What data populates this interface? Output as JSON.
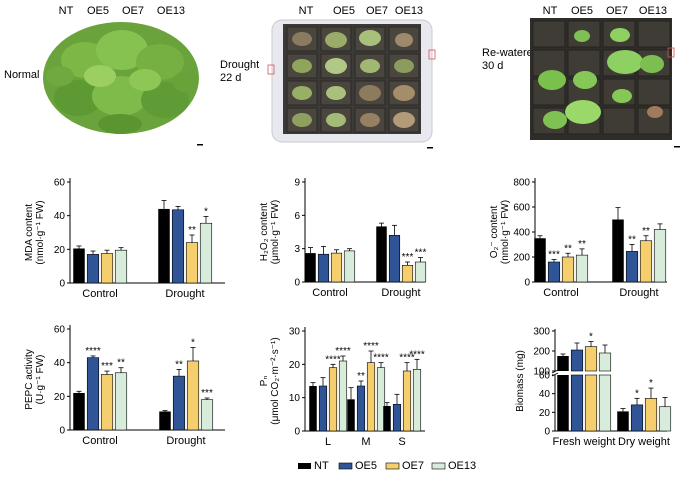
{
  "photos": [
    {
      "condition": "Normal",
      "condition_lines": [
        "Normal"
      ],
      "labels": [
        "NT",
        "OE5",
        "OE7",
        "OE13"
      ]
    },
    {
      "condition": "Drought 22 d",
      "condition_lines": [
        "Drought",
        "22 d"
      ],
      "labels": [
        "NT",
        "OE5",
        "OE7",
        "OE13"
      ]
    },
    {
      "condition": "Re-watered 30 d",
      "condition_lines": [
        "Re-watered",
        "30 d"
      ],
      "labels": [
        "NT",
        "OE5",
        "OE7",
        "OE13"
      ]
    }
  ],
  "legend": {
    "items": [
      {
        "name": "NT",
        "color": "#000000"
      },
      {
        "name": "OE5",
        "color": "#2f5597"
      },
      {
        "name": "OE7",
        "color": "#f5cf6e"
      },
      {
        "name": "OE13",
        "color": "#d8ecdc"
      }
    ]
  },
  "chart_data": [
    {
      "type": "bar",
      "id": "mda",
      "ylabel_lines": [
        "MDA content",
        "(nmol·g⁻¹ FW)"
      ],
      "categories": [
        "Control",
        "Drought"
      ],
      "ylim": [
        0,
        60
      ],
      "yticks": [
        0,
        20,
        40,
        60
      ],
      "series": [
        {
          "name": "NT",
          "values": [
            20.5,
            44
          ],
          "errors": [
            1.5,
            5
          ]
        },
        {
          "name": "OE5",
          "values": [
            17,
            43.5
          ],
          "errors": [
            2,
            2
          ]
        },
        {
          "name": "OE7",
          "values": [
            17.5,
            24
          ],
          "errors": [
            2,
            4.5
          ]
        },
        {
          "name": "OE13",
          "values": [
            19.5,
            35.5
          ],
          "errors": [
            1.5,
            4
          ]
        }
      ],
      "sig": [
        [
          "",
          ""
        ],
        [
          "",
          ""
        ],
        [
          "",
          "**"
        ],
        [
          "",
          "*"
        ]
      ]
    },
    {
      "type": "bar",
      "id": "h2o2",
      "ylabel_lines": [
        "H₂O₂ content",
        "(μmol·g⁻¹ FW)"
      ],
      "categories": [
        "Control",
        "Drought"
      ],
      "ylim": [
        0,
        9
      ],
      "yticks": [
        0,
        3,
        6,
        9
      ],
      "series": [
        {
          "name": "NT",
          "values": [
            2.6,
            5.0
          ],
          "errors": [
            0.5,
            0.3
          ]
        },
        {
          "name": "OE5",
          "values": [
            2.5,
            4.2
          ],
          "errors": [
            0.7,
            0.9
          ]
        },
        {
          "name": "OE7",
          "values": [
            2.6,
            1.5
          ],
          "errors": [
            0.3,
            0.3
          ]
        },
        {
          "name": "OE13",
          "values": [
            2.8,
            1.8
          ],
          "errors": [
            0.2,
            0.4
          ]
        }
      ],
      "sig": [
        [
          "",
          ""
        ],
        [
          "",
          ""
        ],
        [
          "",
          "***"
        ],
        [
          "",
          "***"
        ]
      ]
    },
    {
      "type": "bar",
      "id": "o2",
      "ylabel_lines": [
        "O₂⁻ content",
        "(nmol·g⁻¹ FW)"
      ],
      "categories": [
        "Control",
        "Drought"
      ],
      "ylim": [
        0,
        800
      ],
      "yticks": [
        0,
        200,
        400,
        600,
        800
      ],
      "series": [
        {
          "name": "NT",
          "values": [
            350,
            500
          ],
          "errors": [
            20,
            95
          ]
        },
        {
          "name": "OE5",
          "values": [
            160,
            245
          ],
          "errors": [
            20,
            55
          ]
        },
        {
          "name": "OE7",
          "values": [
            200,
            330
          ],
          "errors": [
            30,
            40
          ]
        },
        {
          "name": "OE13",
          "values": [
            215,
            420
          ],
          "errors": [
            50,
            45
          ]
        }
      ],
      "sig": [
        [
          "",
          ""
        ],
        [
          "***",
          "**"
        ],
        [
          "**",
          "**"
        ],
        [
          "**",
          ""
        ]
      ]
    },
    {
      "type": "bar",
      "id": "pepc",
      "ylabel_lines": [
        "PEPC activity",
        "(U·g⁻¹ FW)"
      ],
      "categories": [
        "Control",
        "Drought"
      ],
      "ylim": [
        0,
        60
      ],
      "yticks": [
        0,
        20,
        40,
        60
      ],
      "series": [
        {
          "name": "NT",
          "values": [
            22,
            11
          ],
          "errors": [
            1,
            0.5
          ]
        },
        {
          "name": "OE5",
          "values": [
            43,
            32
          ],
          "errors": [
            1,
            4
          ]
        },
        {
          "name": "OE7",
          "values": [
            33,
            41
          ],
          "errors": [
            2,
            8
          ]
        },
        {
          "name": "OE13",
          "values": [
            34,
            18
          ],
          "errors": [
            3,
            1
          ]
        }
      ],
      "sig": [
        [
          "",
          ""
        ],
        [
          "****",
          "**"
        ],
        [
          "***",
          "*"
        ],
        [
          "**",
          "***"
        ]
      ]
    },
    {
      "type": "bar",
      "id": "pn",
      "ylabel_lines": [
        "Pₙ",
        "(μmol CO₂·m⁻²·s⁻¹)"
      ],
      "categories": [
        "L",
        "M",
        "S"
      ],
      "ylim": [
        0,
        30
      ],
      "yticks": [
        0,
        10,
        20,
        30
      ],
      "series": [
        {
          "name": "NT",
          "values": [
            13.5,
            9.5,
            7.5
          ],
          "errors": [
            1.0,
            3.5,
            1.0
          ]
        },
        {
          "name": "OE5",
          "values": [
            13.5,
            13.5,
            8.0
          ],
          "errors": [
            2.5,
            1.5,
            3.0
          ]
        },
        {
          "name": "OE7",
          "values": [
            19.0,
            20.5,
            18.0
          ],
          "errors": [
            1.0,
            3.5,
            2.5
          ]
        },
        {
          "name": "OE13",
          "values": [
            21.0,
            19.0,
            18.5
          ],
          "errors": [
            1.5,
            1.5,
            3.0
          ]
        }
      ],
      "sig": [
        [
          "",
          "",
          ""
        ],
        [
          "",
          "**",
          ""
        ],
        [
          "****",
          "****",
          "****"
        ],
        [
          "****",
          "****",
          "****"
        ]
      ]
    },
    {
      "type": "bar",
      "id": "biomass",
      "ylabel_lines": [
        "Biomass (mg)"
      ],
      "categories": [
        "Fresh weight",
        "Dry weight"
      ],
      "axis_break": true,
      "lower_ylim": [
        0,
        60
      ],
      "lower_yticks": [
        0,
        20,
        40,
        60
      ],
      "upper_ylim": [
        100,
        300
      ],
      "upper_yticks": [
        100,
        200,
        300
      ],
      "series": [
        {
          "name": "NT",
          "values": [
            175,
            21
          ],
          "errors": [
            10,
            3
          ]
        },
        {
          "name": "OE5",
          "values": [
            205,
            28
          ],
          "errors": [
            35,
            7
          ]
        },
        {
          "name": "OE7",
          "values": [
            222,
            35
          ],
          "errors": [
            25,
            11
          ]
        },
        {
          "name": "OE13",
          "values": [
            190,
            26
          ],
          "errors": [
            40,
            10
          ]
        }
      ],
      "sig": [
        [
          "",
          ""
        ],
        [
          "",
          "*"
        ],
        [
          "*",
          "*"
        ],
        [
          "",
          ""
        ]
      ]
    }
  ]
}
